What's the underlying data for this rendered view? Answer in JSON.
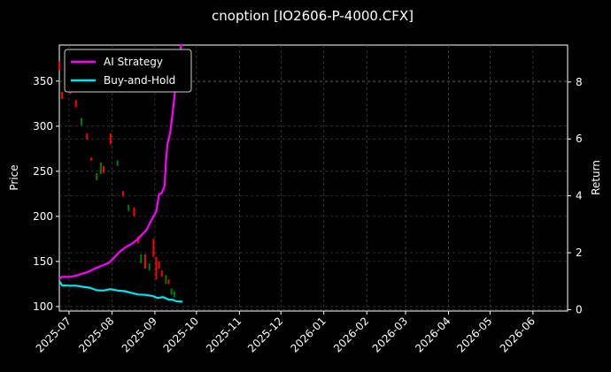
{
  "chart_data": {
    "type": "line",
    "title": "cnoption [IO2606-P-4000.CFX]",
    "ylabel_left": "Price",
    "ylabel_right": "Return",
    "grid": true,
    "legend_position": "top-left",
    "x_range": [
      "2025-06-24",
      "2026-06-26"
    ],
    "ylim_left": [
      95,
      390
    ],
    "ylim_right": [
      -0.05,
      9.3
    ],
    "x_ticks": [
      "2025-07",
      "2025-08",
      "2025-09",
      "2025-10",
      "2025-11",
      "2025-12",
      "2026-01",
      "2026-02",
      "2026-03",
      "2026-04",
      "2026-05",
      "2026-06"
    ],
    "y_ticks_left": [
      100,
      150,
      200,
      250,
      300,
      350
    ],
    "y_ticks_right": [
      0,
      2,
      4,
      6,
      8
    ],
    "colors": {
      "background": "#000000",
      "grid": "#555555",
      "ai_strategy": "#ff00ff",
      "buy_and_hold": "#00e5ee",
      "candle_up": "#008000",
      "candle_down": "#ff0000"
    },
    "series": [
      {
        "name": "AI Strategy",
        "axis": "right",
        "x": [
          "2025-06-24",
          "2025-06-26",
          "2025-07-01",
          "2025-07-05",
          "2025-07-10",
          "2025-07-15",
          "2025-07-20",
          "2025-07-25",
          "2025-07-30",
          "2025-08-03",
          "2025-08-07",
          "2025-08-11",
          "2025-08-15",
          "2025-08-19",
          "2025-08-22",
          "2025-08-26",
          "2025-08-29",
          "2025-09-02",
          "2025-09-04",
          "2025-09-06",
          "2025-09-08",
          "2025-09-09",
          "2025-09-10",
          "2025-09-12",
          "2025-09-14",
          "2025-09-16",
          "2025-09-18",
          "2025-09-20",
          "2025-09-21"
        ],
        "values": [
          1.08,
          1.15,
          1.15,
          1.18,
          1.25,
          1.33,
          1.45,
          1.55,
          1.65,
          1.85,
          2.05,
          2.2,
          2.3,
          2.45,
          2.6,
          2.8,
          3.1,
          3.45,
          4.05,
          4.1,
          4.35,
          5.2,
          5.8,
          6.2,
          7.0,
          7.9,
          8.6,
          9.3,
          9.3
        ]
      },
      {
        "name": "Buy-and-Hold",
        "axis": "right",
        "x": [
          "2025-06-24",
          "2025-06-26",
          "2025-07-01",
          "2025-07-06",
          "2025-07-11",
          "2025-07-16",
          "2025-07-21",
          "2025-07-26",
          "2025-07-31",
          "2025-08-05",
          "2025-08-10",
          "2025-08-15",
          "2025-08-20",
          "2025-08-25",
          "2025-08-30",
          "2025-09-03",
          "2025-09-07",
          "2025-09-11",
          "2025-09-14",
          "2025-09-17",
          "2025-09-21"
        ],
        "values": [
          1.0,
          0.85,
          0.84,
          0.84,
          0.8,
          0.77,
          0.68,
          0.67,
          0.72,
          0.67,
          0.65,
          0.59,
          0.53,
          0.52,
          0.48,
          0.41,
          0.44,
          0.35,
          0.34,
          0.29,
          0.28
        ]
      }
    ],
    "candles": [
      {
        "date": "2025-06-24",
        "open": 372,
        "close": 362
      },
      {
        "date": "2025-06-26",
        "open": 338,
        "close": 330
      },
      {
        "date": "2025-07-02",
        "open": 342,
        "close": 336
      },
      {
        "date": "2025-07-06",
        "open": 329,
        "close": 321
      },
      {
        "date": "2025-07-10",
        "open": 301,
        "close": 309
      },
      {
        "date": "2025-07-14",
        "open": 292,
        "close": 285
      },
      {
        "date": "2025-07-17",
        "open": 265,
        "close": 262
      },
      {
        "date": "2025-07-21",
        "open": 240,
        "close": 248
      },
      {
        "date": "2025-07-24",
        "open": 247,
        "close": 260
      },
      {
        "date": "2025-07-26",
        "open": 256,
        "close": 248
      },
      {
        "date": "2025-07-31",
        "open": 292,
        "close": 280
      },
      {
        "date": "2025-08-05",
        "open": 256,
        "close": 262
      },
      {
        "date": "2025-08-09",
        "open": 228,
        "close": 222
      },
      {
        "date": "2025-08-13",
        "open": 206,
        "close": 213
      },
      {
        "date": "2025-08-17",
        "open": 210,
        "close": 200
      },
      {
        "date": "2025-08-20",
        "open": 178,
        "close": 170
      },
      {
        "date": "2025-08-22",
        "open": 148,
        "close": 158
      },
      {
        "date": "2025-08-25",
        "open": 158,
        "close": 142
      },
      {
        "date": "2025-08-28",
        "open": 140,
        "close": 148
      },
      {
        "date": "2025-08-31",
        "open": 175,
        "close": 155
      },
      {
        "date": "2025-09-02",
        "open": 155,
        "close": 130
      },
      {
        "date": "2025-09-04",
        "open": 150,
        "close": 142
      },
      {
        "date": "2025-09-06",
        "open": 140,
        "close": 133
      },
      {
        "date": "2025-09-09",
        "open": 125,
        "close": 135
      },
      {
        "date": "2025-09-11",
        "open": 130,
        "close": 125
      },
      {
        "date": "2025-09-13",
        "open": 113,
        "close": 120
      },
      {
        "date": "2025-09-15",
        "open": 110,
        "close": 117
      }
    ]
  }
}
